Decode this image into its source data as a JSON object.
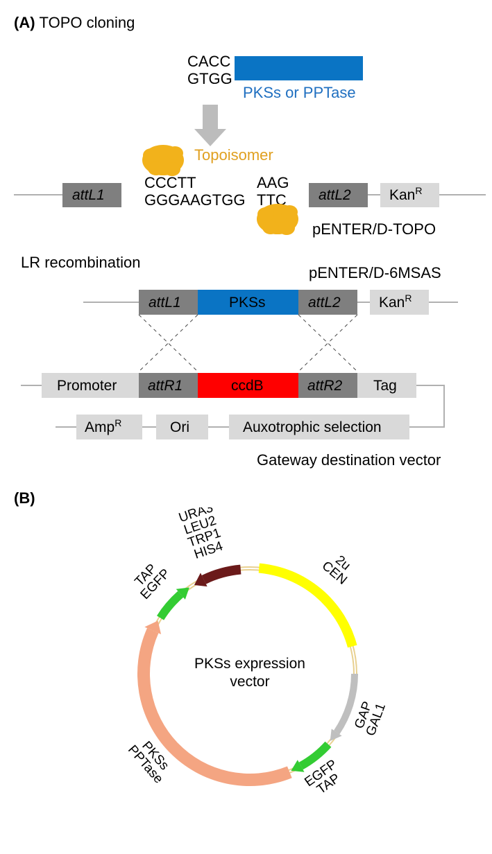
{
  "panelA": {
    "label": "(A)",
    "topo_title": "TOPO cloning",
    "insert_seq_top": "CACC",
    "insert_seq_bot": "GTGG",
    "insert_block_label": "PKSs or PPTase",
    "insert_block_color": "#0a74c4",
    "topoisomer_label": "Topoisomer",
    "topoisomer_blob_color": "#f2b21b",
    "vector_name": "pENTER/D-TOPO",
    "seq_left_top": "CCCTT",
    "seq_left_bot": "GGGAAGTGG",
    "seq_right_top": "AAG",
    "seq_right_bot": "TTC",
    "attL1": "attL1",
    "attL2": "attL2",
    "kanR": "KanR",
    "arrow_color": "#bcbcbc",
    "box_dark": "#7f7f7f",
    "box_light": "#d9d9d9",
    "line_color": "#b0b0b0",
    "lr_title": "LR recombination",
    "entry_clone_name": "pENTER/D-6MSAS",
    "pks_block_label": "PKSs",
    "pks_block_color": "#0a74c4",
    "promoter": "Promoter",
    "attR1": "attR1",
    "attR2": "attR2",
    "ccdB": "ccdB",
    "ccdB_color": "#ff0000",
    "tag": "Tag",
    "ampR": "AmpR",
    "ori": "Ori",
    "auxo": "Auxotrophic selection",
    "gateway_label": "Gateway destination vector"
  },
  "panelB": {
    "label": "(B)",
    "center_label_1": "PKSs expression",
    "center_label_2": "vector",
    "segments": [
      {
        "name": "CEN_2u",
        "labels": [
          "CEN",
          "2u"
        ],
        "color": "#ffff00",
        "start_deg": 5,
        "end_deg": 75,
        "outer_r": 160,
        "width": 14
      },
      {
        "name": "GAP_GAL1",
        "labels": [
          "GAP",
          "GAL1"
        ],
        "color": "#bfbfbf",
        "start_deg": 90,
        "end_deg": 130,
        "outer_r": 156,
        "width": 10,
        "arrow": true,
        "arrow_dir": "end"
      },
      {
        "name": "EGFP_TAP_right",
        "labels": [
          "EGFP",
          "TAP"
        ],
        "color": "#33cc33",
        "start_deg": 132,
        "end_deg": 157,
        "outer_r": 158,
        "width": 12,
        "arrow": true,
        "arrow_dir": "end"
      },
      {
        "name": "PKSs_PPTase",
        "labels": [
          "PKSs",
          "PPTase"
        ],
        "color": "#f4a582",
        "start_deg": 158,
        "end_deg": 300,
        "outer_r": 162,
        "width": 18,
        "arrow": true,
        "arrow_dir": "end"
      },
      {
        "name": "EGFP_TAP_left",
        "labels": [
          "EGFP",
          "TAP"
        ],
        "color": "#33cc33",
        "start_deg": 302,
        "end_deg": 325,
        "outer_r": 158,
        "width": 12,
        "arrow": true,
        "arrow_dir": "end"
      },
      {
        "name": "HIS_TRP_LEU_URA",
        "labels": [
          "HIS4",
          "TRP1",
          "LEU2",
          "URA3"
        ],
        "color": "#6b1a1a",
        "start_deg": 328,
        "end_deg": 355,
        "outer_r": 158,
        "width": 14,
        "arrow": true,
        "arrow_dir": "start"
      }
    ],
    "backbone_color": "#e8d090",
    "label_color": "#000000",
    "label_fontsize": 19
  }
}
